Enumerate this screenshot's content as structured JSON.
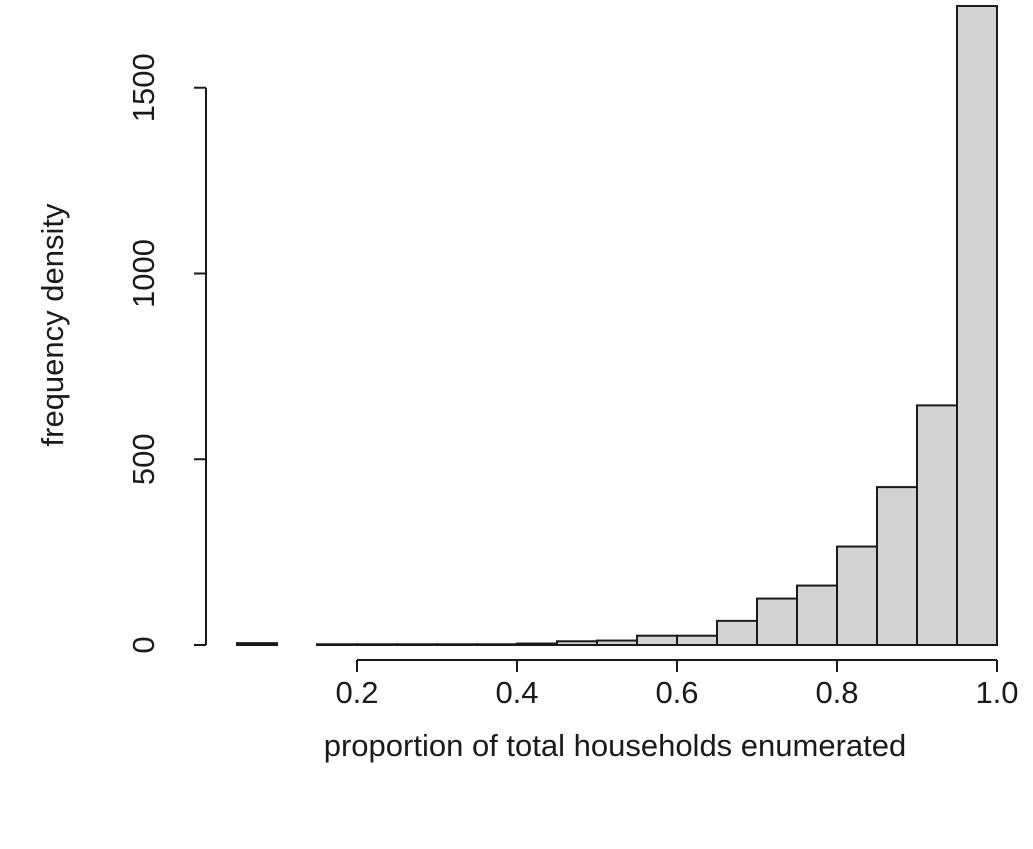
{
  "chart_data": {
    "type": "bar",
    "subtype": "histogram",
    "title": "",
    "xlabel": "proportion of total households enumerated",
    "ylabel": "frequency density",
    "bin_width": 0.05,
    "bins": [
      {
        "x0": 0.05,
        "x1": 0.1,
        "value": 5
      },
      {
        "x0": 0.1,
        "x1": 0.15,
        "value": 0
      },
      {
        "x0": 0.15,
        "x1": 0.2,
        "value": 2
      },
      {
        "x0": 0.2,
        "x1": 0.25,
        "value": 2
      },
      {
        "x0": 0.25,
        "x1": 0.3,
        "value": 2
      },
      {
        "x0": 0.3,
        "x1": 0.35,
        "value": 2
      },
      {
        "x0": 0.35,
        "x1": 0.4,
        "value": 2
      },
      {
        "x0": 0.4,
        "x1": 0.45,
        "value": 4
      },
      {
        "x0": 0.45,
        "x1": 0.5,
        "value": 10
      },
      {
        "x0": 0.5,
        "x1": 0.55,
        "value": 12
      },
      {
        "x0": 0.55,
        "x1": 0.6,
        "value": 25
      },
      {
        "x0": 0.6,
        "x1": 0.65,
        "value": 25
      },
      {
        "x0": 0.65,
        "x1": 0.7,
        "value": 65
      },
      {
        "x0": 0.7,
        "x1": 0.75,
        "value": 125
      },
      {
        "x0": 0.75,
        "x1": 0.8,
        "value": 160
      },
      {
        "x0": 0.8,
        "x1": 0.85,
        "value": 265
      },
      {
        "x0": 0.85,
        "x1": 0.9,
        "value": 425
      },
      {
        "x0": 0.9,
        "x1": 0.95,
        "value": 645
      },
      {
        "x0": 0.95,
        "x1": 1.0,
        "value": 1720
      }
    ],
    "xlim": [
      0.05,
      1.0
    ],
    "ylim": [
      0,
      1720
    ],
    "x_ticks": [
      {
        "value": 0.2,
        "label": "0.2"
      },
      {
        "value": 0.4,
        "label": "0.4"
      },
      {
        "value": 0.6,
        "label": "0.6"
      },
      {
        "value": 0.8,
        "label": "0.8"
      },
      {
        "value": 1.0,
        "label": "1.0"
      }
    ],
    "y_ticks": [
      {
        "value": 0,
        "label": "0"
      },
      {
        "value": 500,
        "label": "500"
      },
      {
        "value": 1000,
        "label": "1000"
      },
      {
        "value": 1500,
        "label": "1500"
      }
    ],
    "grid": false,
    "legend": "none",
    "bar_fill": "#d3d3d3",
    "bar_stroke": "#1a1a1a",
    "axis_color": "#1a1a1a"
  }
}
